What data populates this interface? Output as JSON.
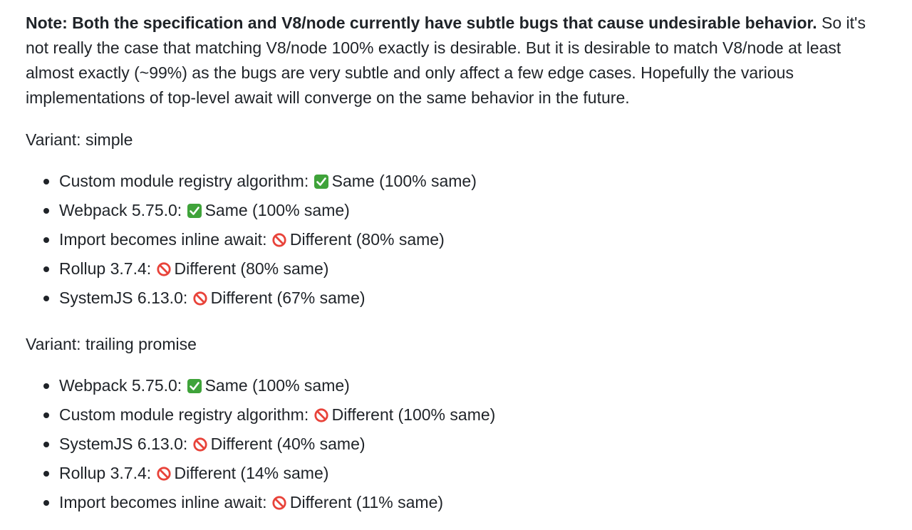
{
  "note": {
    "bold": "Note: Both the specification and V8/node currently have subtle bugs that cause undesirable behavior.",
    "rest": " So it's not really the case that matching V8/node 100% exactly is desirable. But it is desirable to match V8/node at least almost exactly (~99%) as the bugs are very subtle and only affect a few edge cases. Hopefully the various implementations of top-level await will converge on the same behavior in the future."
  },
  "variants": [
    {
      "title": "Variant: simple",
      "items": [
        {
          "name": "Custom module registry algorithm:",
          "icon": "check-mark-icon",
          "result": "Same (100% same)"
        },
        {
          "name": "Webpack 5.75.0:",
          "icon": "check-mark-icon",
          "result": "Same (100% same)"
        },
        {
          "name": "Import becomes inline await:",
          "icon": "prohibited-icon",
          "result": "Different (80% same)"
        },
        {
          "name": "Rollup 3.7.4:",
          "icon": "prohibited-icon",
          "result": "Different (80% same)"
        },
        {
          "name": "SystemJS 6.13.0:",
          "icon": "prohibited-icon",
          "result": "Different (67% same)"
        }
      ]
    },
    {
      "title": "Variant: trailing promise",
      "items": [
        {
          "name": "Webpack 5.75.0:",
          "icon": "check-mark-icon",
          "result": "Same (100% same)"
        },
        {
          "name": "Custom module registry algorithm:",
          "icon": "prohibited-icon",
          "result": "Different (100% same)"
        },
        {
          "name": "SystemJS 6.13.0:",
          "icon": "prohibited-icon",
          "result": "Different (40% same)"
        },
        {
          "name": "Rollup 3.7.4:",
          "icon": "prohibited-icon",
          "result": "Different (14% same)"
        },
        {
          "name": "Import becomes inline await:",
          "icon": "prohibited-icon",
          "result": "Different (11% same)"
        }
      ]
    }
  ],
  "colors": {
    "text": "#1f2328",
    "check_green": "#3fa33a",
    "prohibited_red": "#e8433a"
  }
}
